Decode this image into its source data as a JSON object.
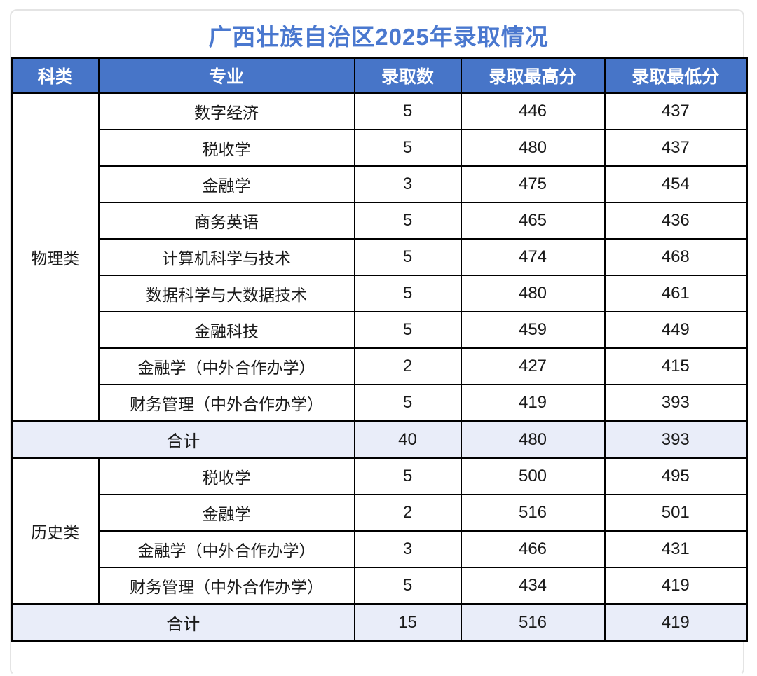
{
  "title": "广西壮族自治区2025年录取情况",
  "colors": {
    "title_text": "#4a78cf",
    "header_bg": "#4775c8",
    "header_text": "#ffffff",
    "total_row_bg": "#e9edf9",
    "table_border": "#000000",
    "card_border": "#e4e4e4"
  },
  "table": {
    "headers": [
      "科类",
      "专业",
      "录取数",
      "录取最高分",
      "录取最低分"
    ],
    "groups": [
      {
        "category": "物理类",
        "rows": [
          [
            "数字经济",
            "5",
            "446",
            "437"
          ],
          [
            "税收学",
            "5",
            "480",
            "437"
          ],
          [
            "金融学",
            "3",
            "475",
            "454"
          ],
          [
            "商务英语",
            "5",
            "465",
            "436"
          ],
          [
            "计算机科学与技术",
            "5",
            "474",
            "468"
          ],
          [
            "数据科学与大数据技术",
            "5",
            "480",
            "461"
          ],
          [
            "金融科技",
            "5",
            "459",
            "449"
          ],
          [
            "金融学（中外合作办学）",
            "2",
            "427",
            "415"
          ],
          [
            "财务管理（中外合作办学）",
            "5",
            "419",
            "393"
          ]
        ],
        "total": {
          "label": "合计",
          "count": "40",
          "max": "480",
          "min": "393"
        }
      },
      {
        "category": "历史类",
        "rows": [
          [
            "税收学",
            "5",
            "500",
            "495"
          ],
          [
            "金融学",
            "2",
            "516",
            "501"
          ],
          [
            "金融学（中外合作办学）",
            "3",
            "466",
            "431"
          ],
          [
            "财务管理（中外合作办学）",
            "5",
            "434",
            "419"
          ]
        ],
        "total": {
          "label": "合计",
          "count": "15",
          "max": "516",
          "min": "419"
        }
      }
    ]
  }
}
